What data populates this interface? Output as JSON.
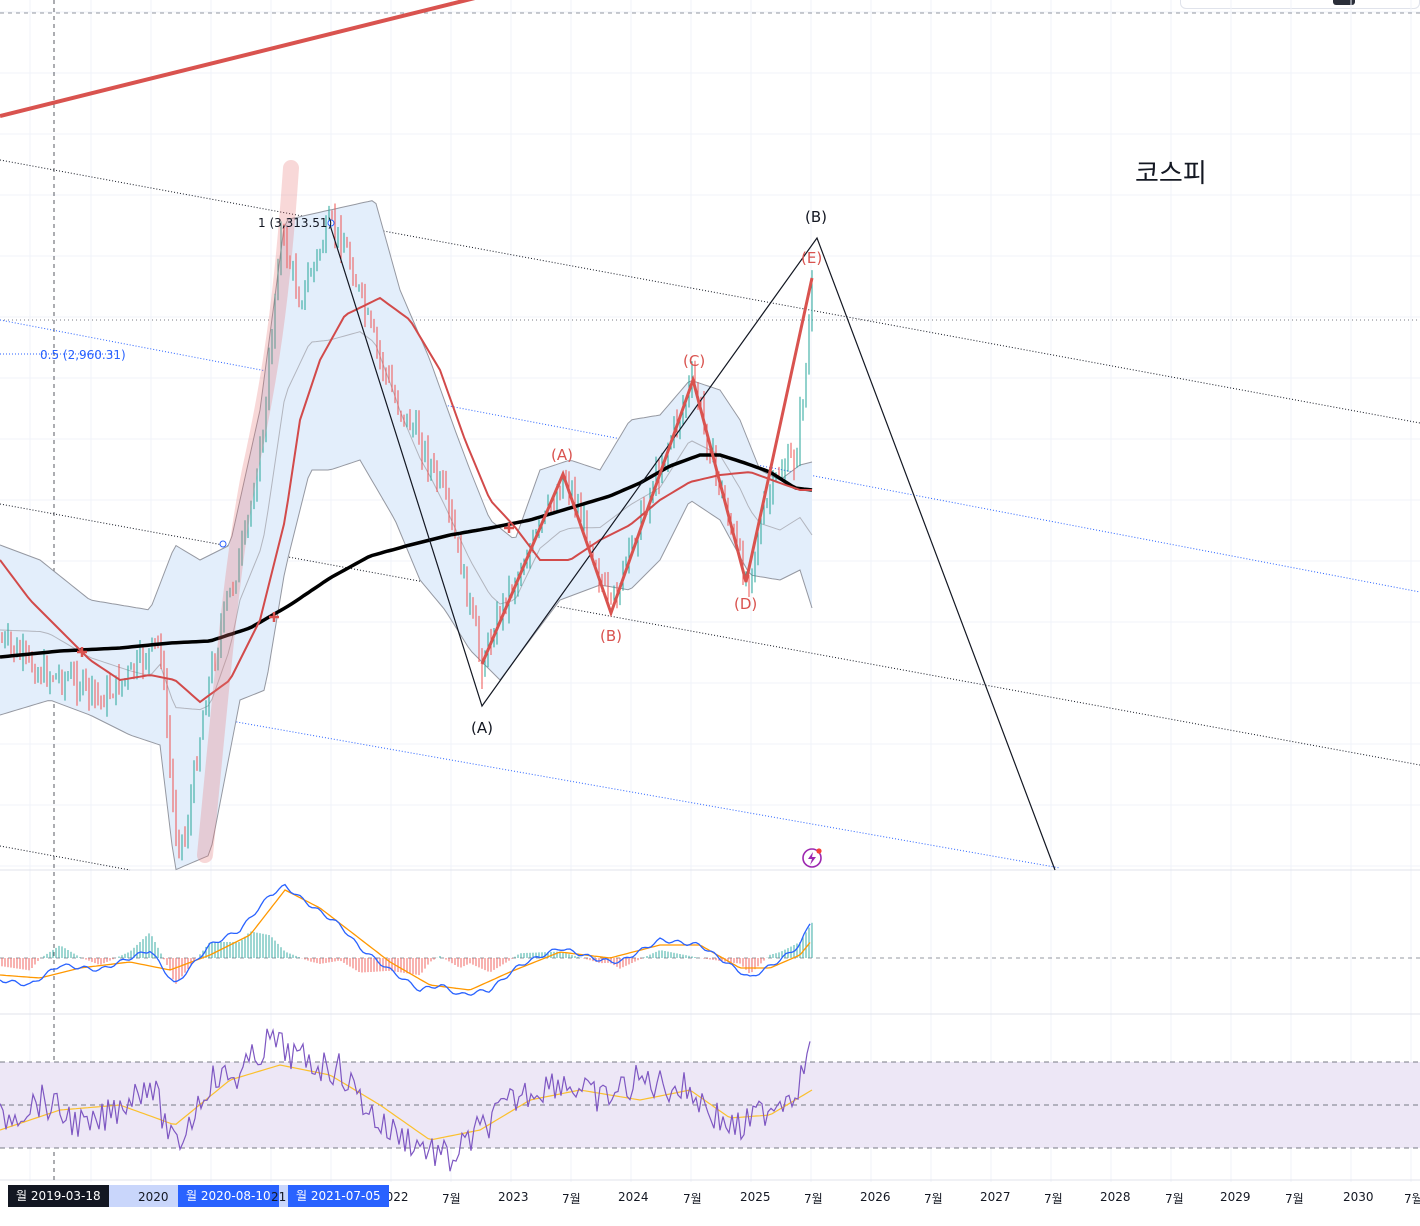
{
  "title": "코스피",
  "fib_levels": [
    {
      "label": "1 (3,313.51)",
      "value": 3313.51,
      "color": "#131722"
    },
    {
      "label": "0.5 (2,960.31)",
      "value": 2960.31,
      "color": "#2962ff"
    }
  ],
  "wave_labels_black": [
    "(A)",
    "(B)"
  ],
  "wave_labels_red": [
    "(A)",
    "(B)",
    "(C)",
    "(D)",
    "(E)"
  ],
  "colors": {
    "candle_up": "#26a69a",
    "candle_down": "#ef5350",
    "ma_long": "#000000",
    "ma_mid": "#d24a4a",
    "bb_fill": "#e3eefb",
    "wave_red": "#d9534f",
    "macd_line": "#2962ff",
    "signal_line": "#ff9800",
    "rsi_line": "#7e57c2",
    "rsi_ma": "#fbc02d",
    "rsi_band": "#ede7f6"
  },
  "time_axis": {
    "ticks": [
      "2020",
      "2022",
      "7월",
      "2023",
      "7월",
      "2024",
      "7월",
      "2025",
      "7월",
      "2026",
      "7월",
      "2027",
      "7월",
      "2028",
      "7월",
      "2029",
      "7월",
      "2030",
      "7월"
    ],
    "highlights": [
      "월 2019-03-18",
      "월 2020-08-10",
      "21",
      "월 2021-07-05"
    ]
  },
  "chart_data": {
    "type": "line",
    "title": "코스피",
    "series": [],
    "annotations": [
      "1 (3,313.51)",
      "0.5 (2,960.31)",
      "(A)",
      "(B)",
      "(C)",
      "(D)",
      "(E)"
    ]
  }
}
